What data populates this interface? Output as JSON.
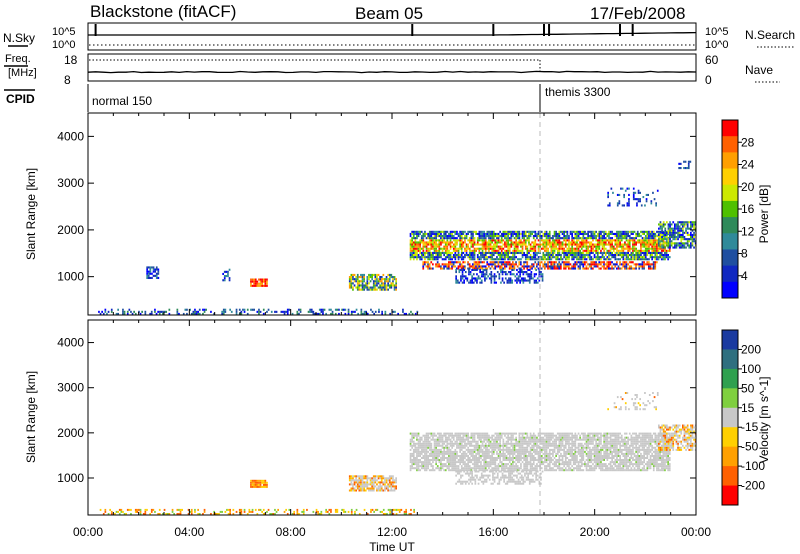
{
  "header": {
    "station": "Blackstone (fitACF)",
    "beam": "Beam 05",
    "date": "17/Feb/2008"
  },
  "top_panels": {
    "nsky_label": "N.Sky",
    "nsky_ticks": [
      "10^5",
      "10^0"
    ],
    "nsearch_label": "N.Search",
    "nsearch_ticks": [
      "10^5",
      "10^0"
    ],
    "freq_label_1": "Freq.",
    "freq_label_2": "[MHz]",
    "freq_ticks": [
      "18",
      "8"
    ],
    "nave_label": "Nave",
    "nave_ticks": [
      "60",
      "0"
    ],
    "cpid_label": "CPID",
    "cpid_segments": [
      {
        "name": "normal 150",
        "start_hour": 0
      },
      {
        "name": "themis 3300",
        "start_hour": 18
      }
    ]
  },
  "chart_data": [
    {
      "type": "heatmap",
      "xlabel": "Time UT",
      "ylabel": "Slant Range [km]",
      "x_range_hours": [
        0,
        24
      ],
      "x_ticks": [
        "00:00",
        "04:00",
        "08:00",
        "12:00",
        "16:00",
        "20:00",
        "00:00"
      ],
      "ylim": [
        180,
        4500
      ],
      "y_ticks": [
        1000,
        2000,
        3000,
        4000
      ],
      "colorbar": {
        "label": "Power [dB]",
        "ticks": [
          "28",
          "24",
          "20",
          "16",
          "12",
          "8",
          "4"
        ],
        "colors": [
          "#ff0000",
          "#ff6000",
          "#ff9f00",
          "#ffd000",
          "#cce800",
          "#4fc000",
          "#2f8a5a",
          "#2f8a9a",
          "#1f4fa0",
          "#1028c0",
          "#0000ff"
        ]
      },
      "regions": [
        {
          "t": [
            0.4,
            13.0
          ],
          "r": [
            180,
            320
          ],
          "value": "4-16 dB, sparse"
        },
        {
          "t": [
            2.3,
            2.8
          ],
          "r": [
            950,
            1200
          ],
          "value": "4-8 dB"
        },
        {
          "t": [
            6.4,
            7.1
          ],
          "r": [
            780,
            950
          ],
          "value": "24-28 dB"
        },
        {
          "t": [
            10.3,
            12.2
          ],
          "r": [
            700,
            1050
          ],
          "value": "4-20 dB"
        },
        {
          "t": [
            12.7,
            23.0
          ],
          "r": [
            1350,
            2000
          ],
          "value": "8-24 dB"
        },
        {
          "t": [
            13.2,
            22.5
          ],
          "r": [
            1150,
            1350
          ],
          "value": "16-28 dB"
        },
        {
          "t": [
            14.5,
            18.0
          ],
          "r": [
            850,
            1150
          ],
          "value": "4-8 dB"
        },
        {
          "t": [
            22.5,
            24.0
          ],
          "r": [
            1600,
            2200
          ],
          "value": "4-16 dB"
        },
        {
          "t": [
            20.5,
            22.5
          ],
          "r": [
            2500,
            2900
          ],
          "value": "4-8 dB, sparse"
        }
      ]
    },
    {
      "type": "heatmap",
      "xlabel": "Time UT",
      "ylabel": "Slant Range [km]",
      "x_range_hours": [
        0,
        24
      ],
      "x_ticks": [
        "00:00",
        "04:00",
        "08:00",
        "12:00",
        "16:00",
        "20:00",
        "00:00"
      ],
      "ylim": [
        180,
        4500
      ],
      "y_ticks": [
        1000,
        2000,
        3000,
        4000
      ],
      "colorbar": {
        "label": "Velocity [m s^-1]",
        "ticks": [
          "200",
          "100",
          "50",
          "15",
          "-15",
          "-50",
          "-100",
          "-200"
        ],
        "colors": [
          "#1a3aa0",
          "#2f6f7f",
          "#2fa04f",
          "#7fcf3f",
          "#c8c8c8",
          "#ffd000",
          "#ffa000",
          "#ff6000",
          "#ff0000"
        ]
      },
      "regions": [
        {
          "t": [
            0.4,
            13.0
          ],
          "r": [
            180,
            320
          ],
          "value": "-50 to -15 m/s"
        },
        {
          "t": [
            6.4,
            7.1
          ],
          "r": [
            780,
            950
          ],
          "value": "-50 to -15 m/s"
        },
        {
          "t": [
            10.3,
            12.2
          ],
          "r": [
            700,
            1050
          ],
          "value": "-15 to -100 m/s"
        },
        {
          "t": [
            12.7,
            23.0
          ],
          "r": [
            1150,
            2000
          ],
          "value": "-15 to 15 m/s (ground scatter)"
        },
        {
          "t": [
            22.5,
            24.0
          ],
          "r": [
            1600,
            2200
          ],
          "value": "-15 to -50 m/s"
        }
      ]
    }
  ]
}
